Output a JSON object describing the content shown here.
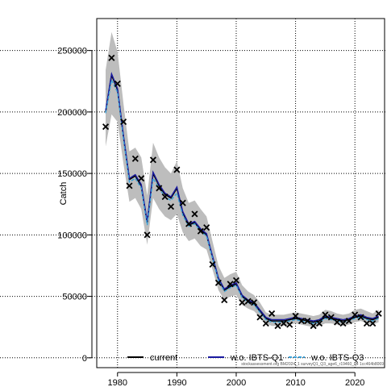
{
  "chart_data": {
    "type": "line",
    "ylabel": "Catch",
    "xlabel": "",
    "xlim": [
      1976.5,
      2025
    ],
    "ylim": [
      -8000,
      276000
    ],
    "xticks": [
      1980,
      1990,
      2000,
      2010,
      2020
    ],
    "yticks": [
      0,
      50000,
      100000,
      150000,
      200000,
      250000
    ],
    "grid": true,
    "legend_position": "bottom",
    "series": [
      {
        "name": "current",
        "style": "solid",
        "color": "#000000",
        "x": [
          1978,
          1979,
          1980,
          1981,
          1982,
          1983,
          1984,
          1985,
          1986,
          1987,
          1988,
          1989,
          1990,
          1991,
          1992,
          1993,
          1994,
          1995,
          1996,
          1997,
          1998,
          1999,
          2000,
          2001,
          2002,
          2003,
          2004,
          2005,
          2006,
          2007,
          2008,
          2009,
          2010,
          2011,
          2012,
          2013,
          2014,
          2015,
          2016,
          2017,
          2018,
          2019,
          2020,
          2021,
          2022,
          2023,
          2024
        ],
        "y": [
          200000,
          230000,
          218000,
          180000,
          145000,
          148000,
          140000,
          110000,
          150000,
          140000,
          133000,
          130000,
          138000,
          118000,
          108000,
          110000,
          104000,
          100000,
          82000,
          64000,
          55000,
          58000,
          60000,
          50000,
          46000,
          44000,
          38000,
          32000,
          30000,
          30000,
          30000,
          31000,
          32000,
          31000,
          30000,
          29000,
          30000,
          33000,
          32000,
          31000,
          30000,
          31000,
          33000,
          34000,
          32000,
          31000,
          33000
        ]
      },
      {
        "name": "w.o. IBTS-Q1",
        "style": "solid",
        "color": "#1a1aa0",
        "x": [
          1978,
          1979,
          1980,
          1981,
          1982,
          1983,
          1984,
          1985,
          1986,
          1987,
          1988,
          1989,
          1990,
          1991,
          1992,
          1993,
          1994,
          1995,
          1996,
          1997,
          1998,
          1999,
          2000,
          2001,
          2002,
          2003,
          2004,
          2005,
          2006,
          2007,
          2008,
          2009,
          2010,
          2011,
          2012,
          2013,
          2014,
          2015,
          2016,
          2017,
          2018,
          2019,
          2020,
          2021,
          2022,
          2023,
          2024
        ],
        "y": [
          201000,
          231000,
          219000,
          181000,
          146000,
          149000,
          141000,
          111000,
          151000,
          141000,
          134000,
          131000,
          139000,
          119000,
          109000,
          111000,
          105000,
          101000,
          83000,
          65000,
          56000,
          59000,
          61000,
          51000,
          47000,
          45000,
          39000,
          33000,
          31000,
          31000,
          31000,
          32000,
          33000,
          32000,
          31000,
          30000,
          31000,
          34000,
          33000,
          32000,
          31000,
          32000,
          34000,
          35000,
          33000,
          32000,
          34000
        ]
      },
      {
        "name": "w.o. IBTS-Q3",
        "style": "dashed",
        "color": "#3aa0d8",
        "x": [
          1978,
          1979,
          1980,
          1981,
          1982,
          1983,
          1984,
          1985,
          1986,
          1987,
          1988,
          1989,
          1990,
          1991,
          1992,
          1993,
          1994,
          1995,
          1996,
          1997,
          1998,
          1999,
          2000,
          2001,
          2002,
          2003,
          2004,
          2005,
          2006,
          2007,
          2008,
          2009,
          2010,
          2011,
          2012,
          2013,
          2014,
          2015,
          2016,
          2017,
          2018,
          2019,
          2020,
          2021,
          2022,
          2023,
          2024
        ],
        "y": [
          199000,
          226000,
          216000,
          178000,
          143000,
          146000,
          138000,
          108000,
          146000,
          138000,
          131000,
          128000,
          134000,
          116000,
          107000,
          109000,
          103000,
          99000,
          81000,
          63000,
          54000,
          57000,
          59000,
          49000,
          45000,
          43000,
          37000,
          31000,
          29000,
          29000,
          29000,
          30000,
          31000,
          30000,
          29000,
          28000,
          29000,
          32000,
          31000,
          30000,
          29000,
          30000,
          32000,
          33000,
          31000,
          30000,
          32000
        ]
      }
    ],
    "confidence_band": {
      "color": "#bdbdbd",
      "x": [
        1978,
        1979,
        1980,
        1981,
        1982,
        1983,
        1984,
        1985,
        1986,
        1987,
        1988,
        1989,
        1990,
        1991,
        1992,
        1993,
        1994,
        1995,
        1996,
        1997,
        1998,
        1999,
        2000,
        2001,
        2002,
        2003,
        2004,
        2005,
        2006,
        2007,
        2008,
        2009,
        2010,
        2011,
        2012,
        2013,
        2014,
        2015,
        2016,
        2017,
        2018,
        2019,
        2020,
        2021,
        2022,
        2023,
        2024
      ],
      "lower": [
        172000,
        198000,
        192000,
        158000,
        127000,
        130000,
        121000,
        92000,
        130000,
        121000,
        115000,
        112000,
        117000,
        102000,
        95000,
        97000,
        91000,
        88000,
        72000,
        55000,
        47000,
        50000,
        51000,
        43000,
        40000,
        38000,
        33000,
        28000,
        26000,
        26000,
        26000,
        27000,
        28000,
        27000,
        26000,
        25000,
        26000,
        28000,
        28000,
        27000,
        26000,
        27000,
        29000,
        30000,
        28000,
        27000,
        29000
      ],
      "upper": [
        234000,
        265000,
        249000,
        207000,
        168000,
        171000,
        163000,
        132000,
        175000,
        163000,
        155000,
        150000,
        160000,
        138000,
        126000,
        128000,
        121000,
        115000,
        95000,
        75000,
        65000,
        68000,
        70000,
        59000,
        54000,
        51000,
        45000,
        37000,
        35000,
        35000,
        35000,
        36000,
        37000,
        36000,
        35000,
        34000,
        35000,
        39000,
        38000,
        36000,
        35000,
        36000,
        39000,
        40000,
        38000,
        36000,
        39000
      ]
    },
    "observations": {
      "marker": "x",
      "x": [
        1978,
        1979,
        1980,
        1981,
        1982,
        1983,
        1984,
        1985,
        1986,
        1987,
        1988,
        1989,
        1990,
        1991,
        1992,
        1993,
        1994,
        1995,
        1996,
        1997,
        1998,
        1999,
        2000,
        2001,
        2002,
        2003,
        2004,
        2005,
        2006,
        2007,
        2008,
        2009,
        2010,
        2011,
        2012,
        2013,
        2014,
        2015,
        2016,
        2017,
        2018,
        2019,
        2020,
        2021,
        2022,
        2023,
        2024
      ],
      "y": [
        188000,
        244000,
        223000,
        192000,
        140000,
        162000,
        146000,
        100000,
        161000,
        138000,
        131000,
        123000,
        153000,
        126000,
        109000,
        117000,
        103000,
        106000,
        76000,
        61000,
        47000,
        60000,
        63000,
        45000,
        46000,
        45000,
        33000,
        28000,
        36000,
        26000,
        28000,
        27000,
        34000,
        30000,
        30000,
        26000,
        28000,
        35000,
        33000,
        29000,
        28000,
        30000,
        35000,
        33000,
        28000,
        28000,
        36000
      ]
    },
    "footnote": "stockassessment.org BM2024_1 surveyQ1_Q3_age6_r19460_q4 1cc464b8069"
  }
}
